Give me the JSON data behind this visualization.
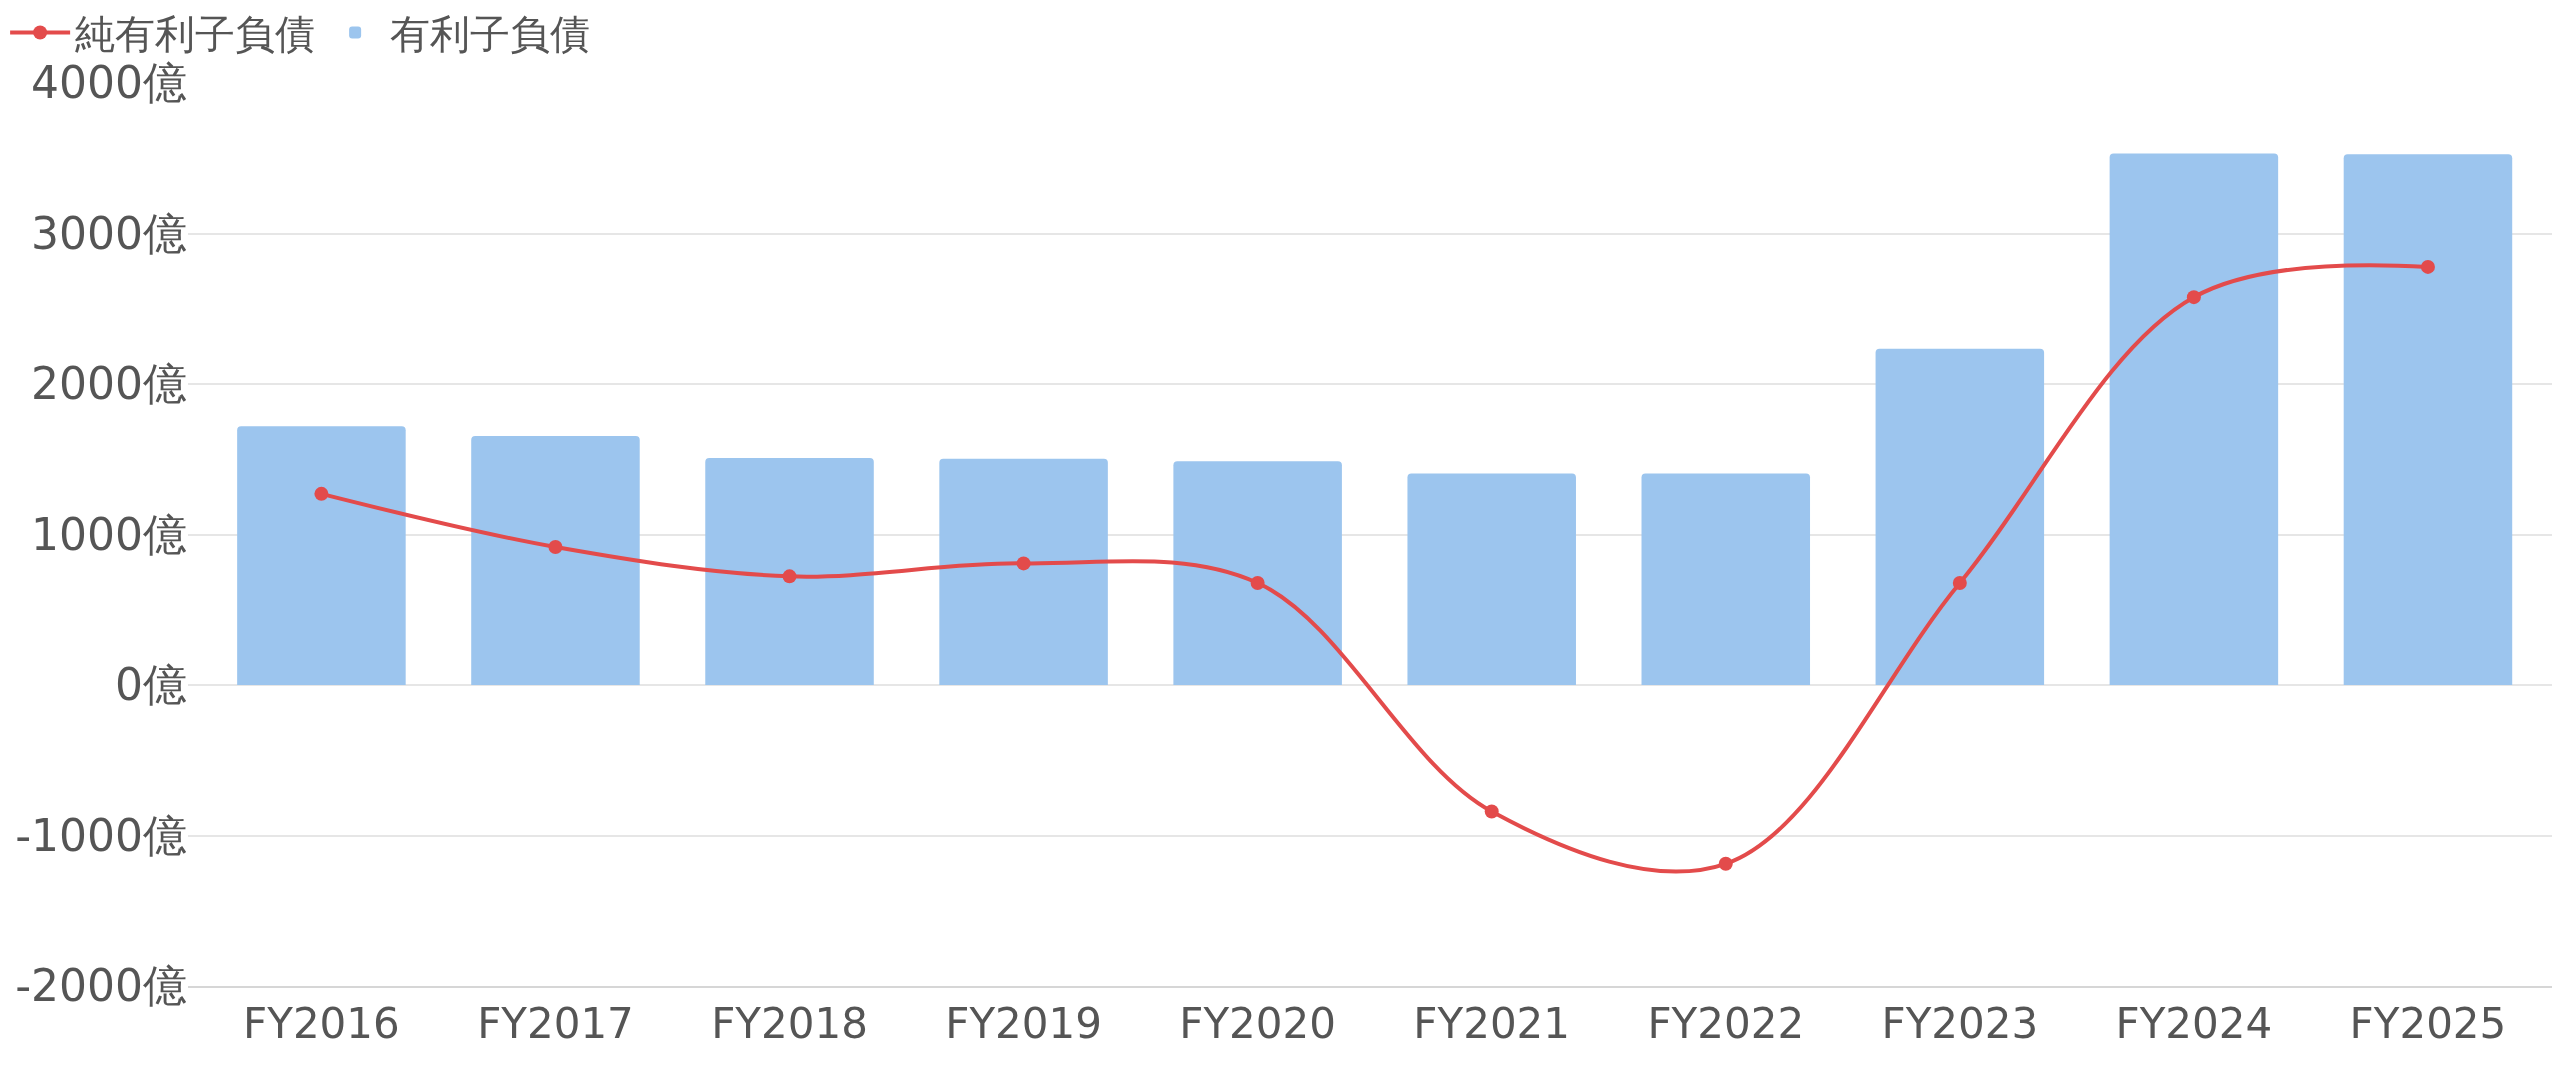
{
  "chart_data": {
    "type": "bar",
    "categories": [
      "FY2016",
      "FY2017",
      "FY2018",
      "FY2019",
      "FY2020",
      "FY2021",
      "FY2022",
      "FY2023",
      "FY2024",
      "FY2025"
    ],
    "series": [
      {
        "name": "純有利子負債",
        "type": "line",
        "color": "#e34b4b",
        "values": [
          1270,
          917,
          722,
          808,
          678,
          -841,
          -1188,
          678,
          2577,
          2778
        ]
      },
      {
        "name": "有利子負債",
        "color": "#9cc5ee",
        "values": [
          1720,
          1655,
          1508,
          1503,
          1487,
          1405,
          1405,
          2235,
          3532,
          3527
        ]
      }
    ],
    "ylim": [
      -2000,
      4000
    ],
    "yticks": [
      {
        "value": -2000,
        "label": "-2000億"
      },
      {
        "value": -1000,
        "label": "-1000億"
      },
      {
        "value": 0,
        "label": "0億"
      },
      {
        "value": 1000,
        "label": "1000億"
      },
      {
        "value": 2000,
        "label": "2000億"
      },
      {
        "value": 3000,
        "label": "3000億"
      },
      {
        "value": 4000,
        "label": "4000億"
      }
    ],
    "grid": "y",
    "legend": "top left",
    "marker": "circle",
    "line_style": "solid"
  }
}
